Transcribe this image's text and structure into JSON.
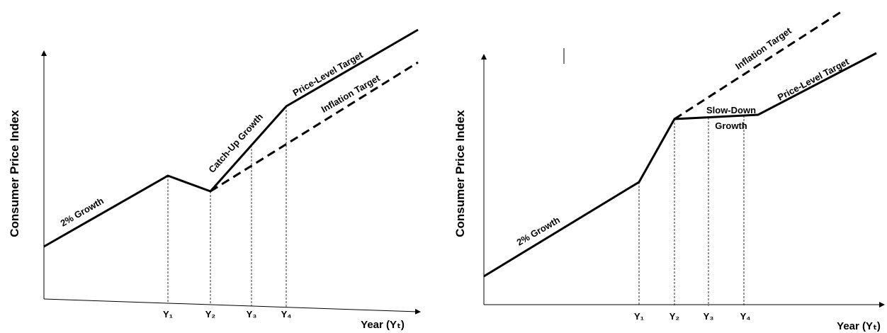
{
  "left": {
    "y_label": "Consumer Price Index",
    "x_label": "Year (Yₜ)",
    "x_ticks": [
      "Y₁",
      "Y₂",
      "Y₃",
      "Y₄"
    ],
    "growth_label": "2% Growth",
    "catchup_label": "Catch-Up Growth",
    "price_level_label": "Price-Level Target",
    "inflation_label": "Inflation Target"
  },
  "right": {
    "y_label": "Consumer Price Index",
    "x_label": "Year (Yₜ)",
    "x_ticks": [
      "Y₁",
      "Y₂",
      "Y₃",
      "Y₄"
    ],
    "growth_label": "2% Growth",
    "slowdown_label_1": "Slow-Down",
    "slowdown_label_2": "Growth",
    "inflation_label": "Inflation Target",
    "price_level_label": "Price-Level Target"
  }
}
